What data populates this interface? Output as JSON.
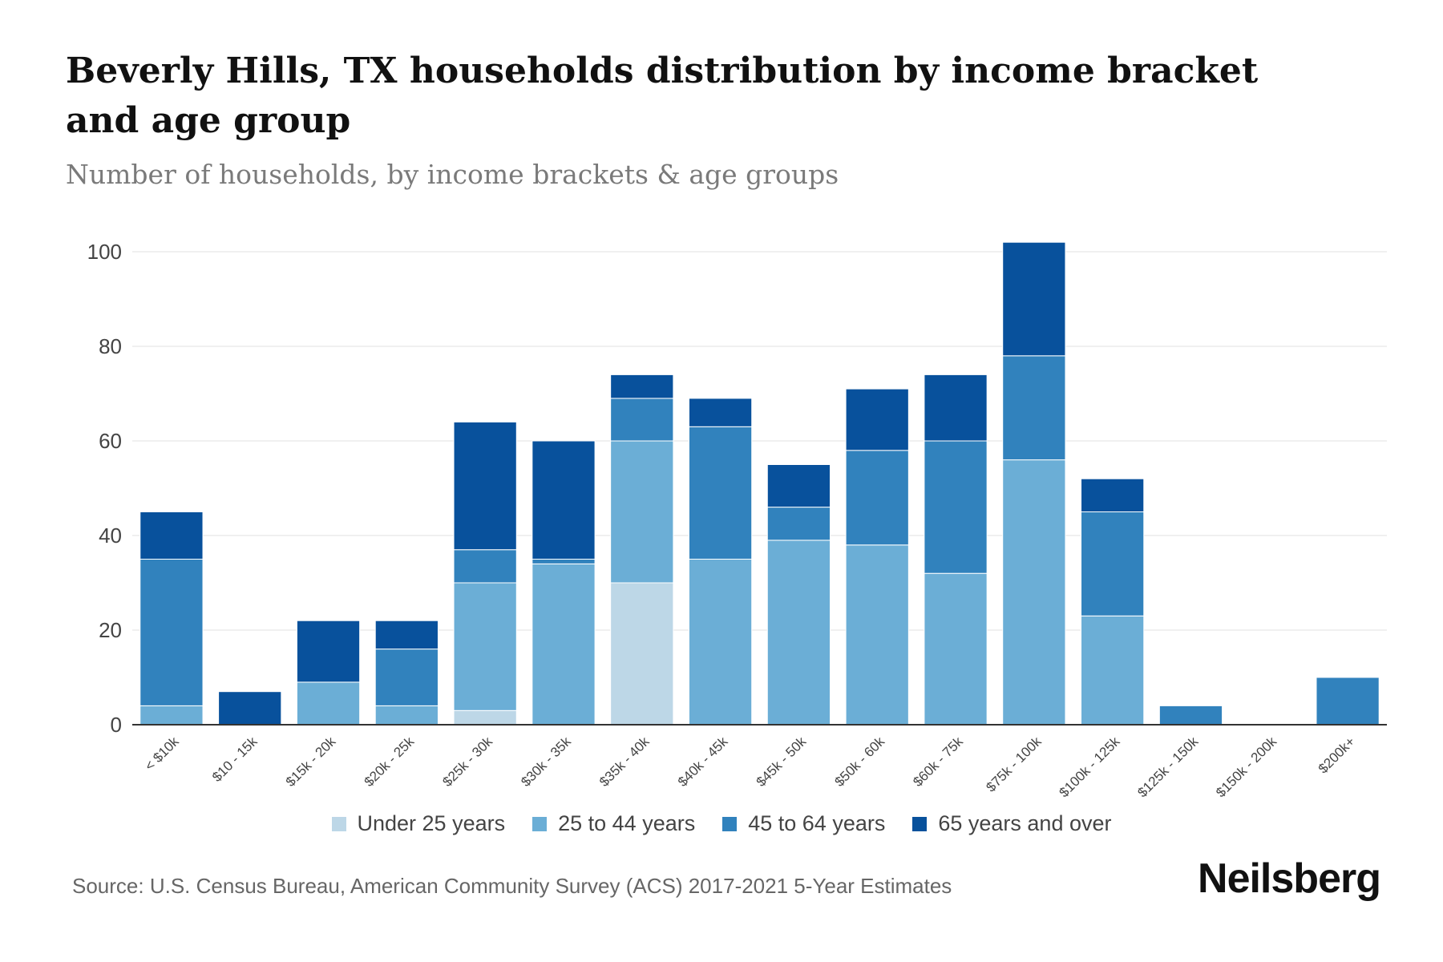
{
  "header": {
    "title": "Beverly Hills, TX households distribution by income bracket and age group",
    "subtitle": "Number of households, by income brackets & age groups"
  },
  "footer": {
    "source": "Source: U.S. Census Bureau, American Community Survey (ACS) 2017-2021 5-Year Estimates",
    "brand": "Neilsberg"
  },
  "colors": {
    "under25": "#bdd7e7",
    "age25to44": "#6baed6",
    "age45to64": "#3182bd",
    "age65plus": "#08519c",
    "grid": "#ececec",
    "axis": "#333333",
    "tick_text": "#444444"
  },
  "chart_data": {
    "type": "bar",
    "stacked": true,
    "title": "Beverly Hills, TX households distribution by income bracket and age group",
    "subtitle": "Number of households, by income brackets & age groups",
    "xlabel": "",
    "ylabel": "",
    "ylim": [
      0,
      100
    ],
    "yticks": [
      0,
      20,
      40,
      60,
      80,
      100
    ],
    "grid": true,
    "legend_position": "bottom",
    "categories": [
      "< $10k",
      "$10 - 15k",
      "$15k - 20k",
      "$20k - 25k",
      "$25k - 30k",
      "$30k - 35k",
      "$35k - 40k",
      "$40k - 45k",
      "$45k - 50k",
      "$50k - 60k",
      "$60k - 75k",
      "$75k - 100k",
      "$100k - 125k",
      "$125k - 150k",
      "$150k - 200k",
      "$200k+"
    ],
    "series": [
      {
        "name": "Under 25 years",
        "values": [
          0,
          0,
          0,
          0,
          3,
          0,
          30,
          0,
          0,
          0,
          0,
          0,
          0,
          0,
          0,
          0
        ]
      },
      {
        "name": "25 to 44 years",
        "values": [
          4,
          0,
          9,
          4,
          27,
          34,
          30,
          35,
          39,
          38,
          32,
          56,
          23,
          0,
          0,
          0
        ]
      },
      {
        "name": "45 to 64 years",
        "values": [
          31,
          0,
          0,
          12,
          7,
          1,
          9,
          28,
          7,
          20,
          28,
          22,
          22,
          4,
          0,
          10
        ]
      },
      {
        "name": "65 years and over",
        "values": [
          10,
          7,
          13,
          6,
          27,
          25,
          5,
          6,
          9,
          13,
          14,
          24,
          7,
          0,
          0,
          0
        ]
      }
    ]
  }
}
